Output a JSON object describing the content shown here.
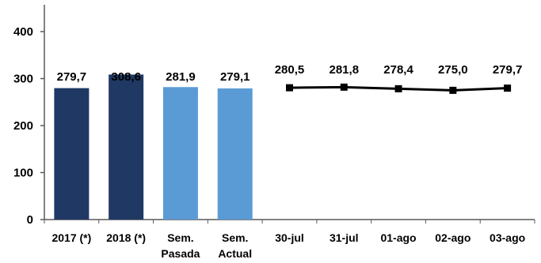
{
  "chart_data": {
    "type": "bar",
    "ylim": [
      0,
      400
    ],
    "yticks": [
      0,
      100,
      200,
      300,
      400
    ],
    "grid": false,
    "categories": [
      [
        "2017 (*)"
      ],
      [
        "2018 (*)"
      ],
      [
        "Sem.",
        "Pasada"
      ],
      [
        "Sem.",
        "Actual"
      ],
      [
        "30-jul"
      ],
      [
        "31-jul"
      ],
      [
        "01-ago"
      ],
      [
        "02-ago"
      ],
      [
        "03-ago"
      ]
    ],
    "bars": [
      {
        "value": 279.7,
        "label": "279,7",
        "color": "#1f3864"
      },
      {
        "value": 308.6,
        "label": "308,6",
        "color": "#1f3864"
      },
      {
        "value": 281.9,
        "label": "281,9",
        "color": "#5b9bd5"
      },
      {
        "value": 279.1,
        "label": "279,1",
        "color": "#5b9bd5"
      }
    ],
    "line": {
      "color": "#000000",
      "marker": "square",
      "values": [
        280.5,
        281.8,
        278.4,
        275.0,
        279.7
      ],
      "labels": [
        "280,5",
        "281,8",
        "278,4",
        "275,0",
        "279,7"
      ]
    }
  }
}
